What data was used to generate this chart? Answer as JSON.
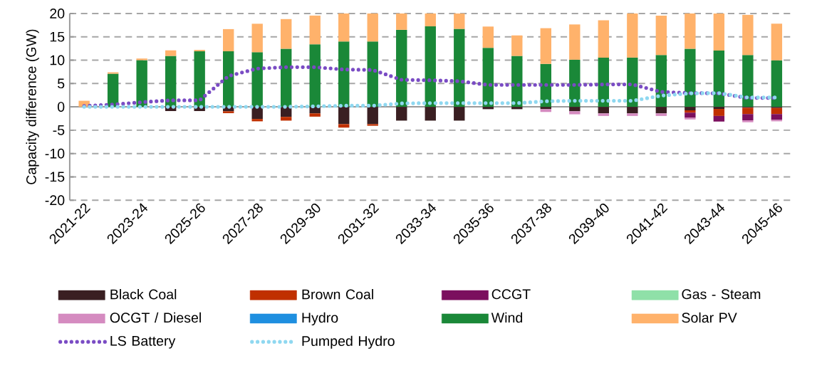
{
  "chart_data": {
    "type": "bar",
    "stacked": true,
    "ylabel": "Capacity difference (GW)",
    "categories": [
      "2021-22",
      null,
      "2023-24",
      null,
      "2025-26",
      null,
      "2027-28",
      null,
      "2029-30",
      null,
      "2031-32",
      null,
      "2033-34",
      null,
      "2035-36",
      null,
      "2037-38",
      null,
      "2039-40",
      null,
      "2041-42",
      null,
      "2043-44",
      null,
      "2045-46"
    ],
    "ylim": [
      -20,
      20
    ],
    "yticks": [
      -20,
      -15,
      -10,
      -5,
      0,
      5,
      10,
      15,
      20
    ],
    "grid": "y",
    "legend": "bottom",
    "series": [
      {
        "name": "Black Coal",
        "color": "#3a1f22",
        "values": [
          0,
          0,
          null,
          -0.9,
          -0.9,
          -0.95,
          -2.6,
          -2.15,
          -1.4,
          -3.7,
          -3.7,
          -2.95,
          -2.95,
          -2.95,
          -0.5,
          -0.5,
          -0.5,
          -0.95,
          -1.4,
          -1.4,
          -1.4,
          -0.75,
          -0.45,
          -0.2,
          -0.25
        ]
      },
      {
        "name": "Brown Coal",
        "color": "#c03000",
        "values": [
          0,
          0,
          0,
          0,
          0,
          -0.4,
          -0.5,
          -0.8,
          -0.7,
          -0.75,
          -0.35,
          0,
          0,
          0,
          0,
          0,
          0,
          0,
          0,
          0,
          0,
          -0.5,
          -1.5,
          -1.35,
          -1.3
        ]
      },
      {
        "name": "CCGT",
        "color": "#7b0f5e",
        "values": [
          0,
          0,
          0,
          0,
          0,
          0,
          0,
          0,
          0,
          0,
          0,
          0,
          0,
          0,
          0,
          0,
          0,
          0,
          0,
          0,
          0,
          -1.1,
          -1.2,
          -1.35,
          -1.25
        ]
      },
      {
        "name": "Gas - Steam",
        "color": "#8fe0a8",
        "values": [
          0,
          0,
          0,
          0,
          0,
          0,
          0,
          0,
          0,
          0,
          0,
          0,
          0,
          0,
          0,
          0,
          0,
          0,
          0,
          0,
          0,
          0,
          0,
          0,
          0
        ]
      },
      {
        "name": "OCGT / Diesel",
        "color": "#d58bc0",
        "values": [
          0,
          0,
          0,
          0,
          0,
          0,
          0,
          0,
          0,
          0,
          0,
          0,
          0,
          0,
          0,
          0,
          -0.6,
          -0.65,
          -0.55,
          -0.55,
          -0.55,
          -0.35,
          0,
          -0.4,
          -0.3
        ]
      },
      {
        "name": "Hydro",
        "color": "#1e8fe0",
        "values": [
          0,
          0,
          0,
          0,
          0,
          0,
          0,
          0,
          0,
          0,
          0,
          0,
          0,
          0,
          0,
          0,
          0,
          0,
          0,
          0,
          0,
          0,
          0,
          0,
          0
        ]
      },
      {
        "name": "Wind",
        "color": "#1a8838",
        "values": [
          0,
          7.1,
          10.0,
          10.9,
          11.9,
          11.9,
          11.7,
          12.45,
          13.4,
          14.0,
          14.0,
          16.5,
          17.25,
          16.7,
          12.65,
          10.9,
          9.2,
          10.1,
          10.55,
          10.55,
          11.1,
          12.45,
          12.05,
          11.1,
          9.95
        ]
      },
      {
        "name": "Solar PV",
        "color": "#ffb26b",
        "values": [
          1.3,
          0.3,
          0.35,
          1.2,
          0.3,
          4.75,
          6.1,
          6.35,
          6.15,
          6.0,
          6.0,
          3.5,
          2.75,
          3.3,
          4.55,
          4.4,
          7.65,
          7.55,
          8.0,
          9.45,
          8.45,
          7.55,
          7.95,
          8.6,
          7.85
        ]
      },
      {
        "name": "LS Battery",
        "type": "line",
        "line_style": "dotted",
        "color": "#7a4cc4",
        "values": [
          0.2,
          0.5,
          1.0,
          1.4,
          1.4,
          6.6,
          8.2,
          8.5,
          8.5,
          8.0,
          7.9,
          5.8,
          5.7,
          5.5,
          4.7,
          4.7,
          4.7,
          4.7,
          4.8,
          4.8,
          3.2,
          2.95,
          2.9,
          1.9,
          1.9
        ]
      },
      {
        "name": "Pumped Hydro",
        "type": "line",
        "line_style": "dotted",
        "color": "#8fd8f0",
        "values": [
          0,
          0,
          0,
          0,
          0,
          0,
          0,
          0,
          0.1,
          0.25,
          0.25,
          0.75,
          0.8,
          0.8,
          0.8,
          0.8,
          1.2,
          1.3,
          1.3,
          1.3,
          2.4,
          2.9,
          2.95,
          2.0,
          2.0
        ]
      }
    ]
  }
}
